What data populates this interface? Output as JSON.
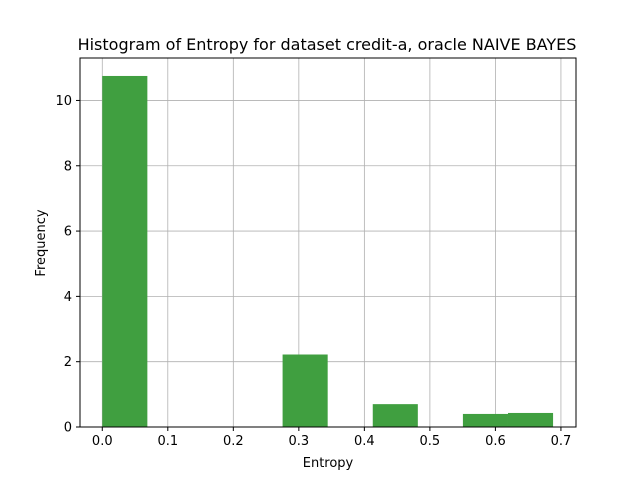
{
  "chart_data": {
    "type": "bar",
    "title": "Histogram of Entropy for dataset credit-a, oracle NAIVE BAYES",
    "xlabel": "Entropy",
    "ylabel": "Frequency",
    "xlim": [
      -0.034,
      0.723
    ],
    "ylim": [
      0,
      11.3
    ],
    "xticks": [
      "0.0",
      "0.1",
      "0.2",
      "0.3",
      "0.4",
      "0.5",
      "0.6",
      "0.7"
    ],
    "yticks": [
      "0",
      "2",
      "4",
      "6",
      "8",
      "10"
    ],
    "grid": true,
    "bar_color": "#409f40",
    "bins": [
      {
        "x0": 0.0,
        "x1": 0.0688,
        "value": 10.75
      },
      {
        "x0": 0.0688,
        "x1": 0.1376,
        "value": 0
      },
      {
        "x0": 0.1376,
        "x1": 0.2064,
        "value": 0
      },
      {
        "x0": 0.2064,
        "x1": 0.2752,
        "value": 0
      },
      {
        "x0": 0.2752,
        "x1": 0.344,
        "value": 2.22
      },
      {
        "x0": 0.344,
        "x1": 0.4128,
        "value": 0
      },
      {
        "x0": 0.4128,
        "x1": 0.4816,
        "value": 0.7
      },
      {
        "x0": 0.4816,
        "x1": 0.5504,
        "value": 0
      },
      {
        "x0": 0.5504,
        "x1": 0.6192,
        "value": 0.4
      },
      {
        "x0": 0.6192,
        "x1": 0.688,
        "value": 0.43
      }
    ]
  }
}
